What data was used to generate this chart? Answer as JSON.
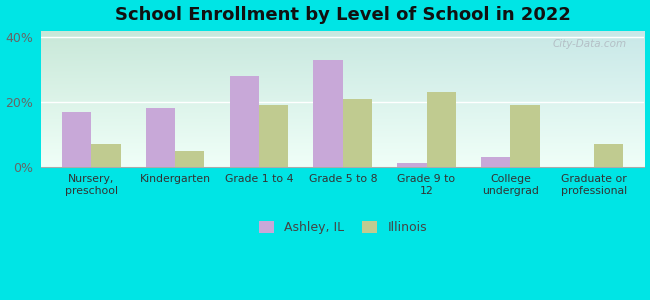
{
  "title": "School Enrollment by Level of School in 2022",
  "categories": [
    "Nursery,\npreschool",
    "Kindergarten",
    "Grade 1 to 4",
    "Grade 5 to 8",
    "Grade 9 to\n12",
    "College\nundergrad",
    "Graduate or\nprofessional"
  ],
  "ashley_values": [
    17,
    18,
    28,
    33,
    1,
    3,
    0
  ],
  "illinois_values": [
    7,
    5,
    19,
    21,
    23,
    19,
    7
  ],
  "ashley_color": "#c8a8d8",
  "illinois_color": "#c0cb90",
  "ylim": [
    0,
    42
  ],
  "yticks": [
    0,
    20,
    40
  ],
  "ytick_labels": [
    "0%",
    "20%",
    "40%"
  ],
  "background_color": "#00e5e5",
  "plot_bg_topleft": "#c8e8d8",
  "plot_bg_topright": "#c8e8e8",
  "plot_bg_bottom": "#f0fff8",
  "bar_width": 0.35,
  "legend_labels": [
    "Ashley, IL",
    "Illinois"
  ],
  "title_fontsize": 13,
  "watermark": "City-Data.com"
}
